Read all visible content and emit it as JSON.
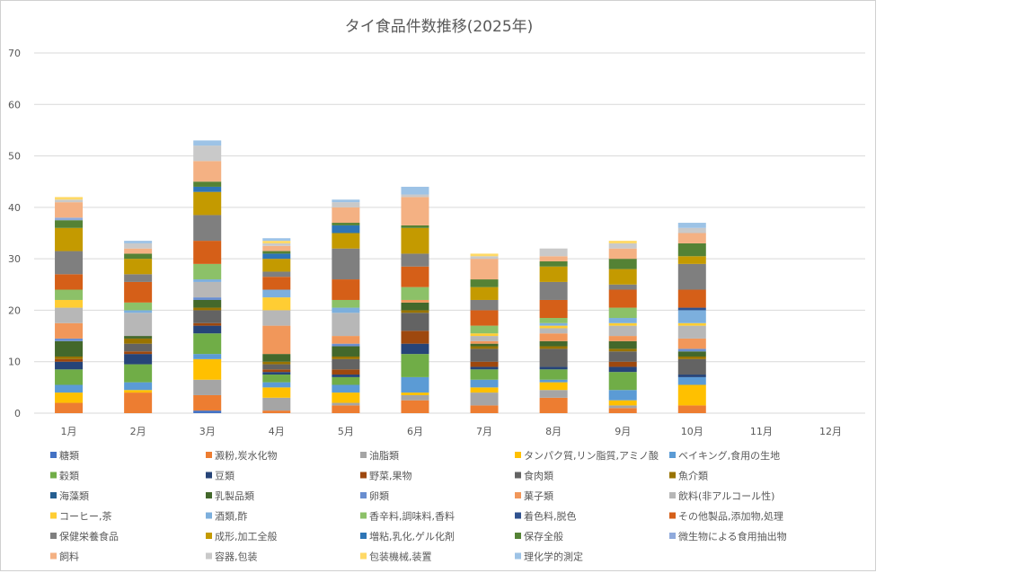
{
  "chart_data": {
    "type": "bar",
    "stacked": true,
    "title": "タイ食品件数推移(2025年)",
    "xlabel": "",
    "ylabel": "",
    "ylim": [
      0,
      70
    ],
    "yticks": [
      0,
      10,
      20,
      30,
      40,
      50,
      60,
      70
    ],
    "grid": true,
    "legend_position": "bottom",
    "categories": [
      "1月",
      "2月",
      "3月",
      "4月",
      "5月",
      "6月",
      "7月",
      "8月",
      "9月",
      "10月",
      "11月",
      "12月"
    ],
    "series": [
      {
        "name": "糖類",
        "color": "#4472C4",
        "values": [
          0,
          0,
          0.5,
          0,
          0,
          0,
          0,
          0,
          0,
          0,
          0,
          0
        ]
      },
      {
        "name": "澱粉,炭水化物",
        "color": "#ED7D31",
        "values": [
          2,
          4,
          3,
          0.5,
          1.5,
          2.5,
          1.5,
          3,
          1,
          1.5,
          0,
          0
        ]
      },
      {
        "name": "油脂類",
        "color": "#A5A5A5",
        "values": [
          0,
          0,
          3,
          2.5,
          0.5,
          1,
          2.5,
          1.5,
          0.5,
          0,
          0,
          0
        ]
      },
      {
        "name": "タンパク質,リン脂質,アミノ酸",
        "color": "#FFC000",
        "values": [
          2,
          0.5,
          4,
          2,
          2,
          0.5,
          1,
          1.5,
          1,
          4,
          0,
          0
        ]
      },
      {
        "name": "ベイキング,食用の生地",
        "color": "#5B9BD5",
        "values": [
          1.5,
          1.5,
          1,
          1,
          1.5,
          3,
          1.5,
          0.5,
          2,
          1.5,
          0,
          0
        ]
      },
      {
        "name": "穀類",
        "color": "#70AD47",
        "values": [
          3,
          3.5,
          4,
          1.5,
          1.5,
          4.5,
          2,
          2,
          3.5,
          0,
          0,
          0
        ]
      },
      {
        "name": "豆類",
        "color": "#264478",
        "values": [
          1.5,
          2,
          1.5,
          0.5,
          0.5,
          2,
          0.5,
          0.5,
          1,
          0.5,
          0,
          0
        ]
      },
      {
        "name": "野菜,果物",
        "color": "#9E480E",
        "values": [
          0.5,
          0.5,
          0.5,
          0.5,
          1,
          2.5,
          1,
          0,
          1,
          0,
          0,
          0
        ]
      },
      {
        "name": "食肉類",
        "color": "#636363",
        "values": [
          0,
          1.5,
          2.5,
          1,
          2,
          3.5,
          2.5,
          3.5,
          2,
          3,
          0,
          0
        ]
      },
      {
        "name": "魚介類",
        "color": "#997300",
        "values": [
          0.5,
          1,
          0.5,
          0.5,
          0.5,
          0.5,
          0.5,
          0.5,
          0.5,
          0.5,
          0,
          0
        ]
      },
      {
        "name": "海藻類",
        "color": "#255E91",
        "values": [
          0,
          0,
          0,
          0,
          0,
          0,
          0,
          0,
          0,
          0,
          0,
          0
        ]
      },
      {
        "name": "乳製品類",
        "color": "#43682B",
        "values": [
          3,
          0.5,
          1.5,
          1.5,
          2,
          1.5,
          0.5,
          1,
          1.5,
          1,
          0,
          0
        ]
      },
      {
        "name": "卵類",
        "color": "#698ED0",
        "values": [
          0.5,
          0,
          0.5,
          0,
          0.5,
          0,
          0,
          0,
          0,
          0.5,
          0,
          0
        ]
      },
      {
        "name": "菓子類",
        "color": "#F1975A",
        "values": [
          3,
          0,
          0,
          5.5,
          1.5,
          0.5,
          0.5,
          1.5,
          1,
          2,
          0,
          0
        ]
      },
      {
        "name": "飲料(非アルコール性)",
        "color": "#B7B7B7",
        "values": [
          3,
          4.5,
          3,
          3,
          4.5,
          0,
          1,
          1,
          2,
          2.5,
          0,
          0
        ]
      },
      {
        "name": "コーヒー,茶",
        "color": "#FFCD33",
        "values": [
          1.5,
          0,
          0,
          2.5,
          0,
          0,
          0.5,
          0.5,
          0.5,
          0.5,
          0,
          0
        ]
      },
      {
        "name": "酒類,酢",
        "color": "#7CAFDD",
        "values": [
          0,
          0.5,
          0.5,
          1.5,
          1,
          0,
          0,
          0.5,
          1,
          2.5,
          0,
          0
        ]
      },
      {
        "name": "香辛料,調味料,香料",
        "color": "#8CC168",
        "values": [
          2,
          1.5,
          3,
          0,
          1.5,
          2.5,
          1.5,
          1,
          2,
          0,
          0,
          0
        ]
      },
      {
        "name": "着色料,脱色",
        "color": "#2F528F",
        "values": [
          0,
          0,
          0,
          0,
          0,
          0,
          0,
          0,
          0,
          0.5,
          0,
          0
        ]
      },
      {
        "name": "その他製品,添加物,処理",
        "color": "#D55F18",
        "values": [
          3,
          4,
          4.5,
          2.5,
          4,
          4,
          3,
          3.5,
          3.5,
          3.5,
          0,
          0
        ]
      },
      {
        "name": "保健栄養食品",
        "color": "#7F7F7F",
        "values": [
          4.5,
          1.5,
          5,
          1,
          6,
          2.5,
          2,
          3.5,
          1,
          5,
          0,
          0
        ]
      },
      {
        "name": "成形,加工全般",
        "color": "#C49A00",
        "values": [
          4.5,
          3,
          4.5,
          2.5,
          3,
          5,
          2.5,
          3,
          3,
          1.5,
          0,
          0
        ]
      },
      {
        "name": "増粘,乳化,ゲル化剤",
        "color": "#2E75B6",
        "values": [
          0,
          0,
          1,
          1,
          1.5,
          0,
          0,
          0,
          0,
          0,
          0,
          0
        ]
      },
      {
        "name": "保存全般",
        "color": "#548235",
        "values": [
          1.5,
          1,
          1,
          0.5,
          0.5,
          0.5,
          1.5,
          1,
          2,
          2.5,
          0,
          0
        ]
      },
      {
        "name": "微生物による食用抽出物",
        "color": "#8FAADC",
        "values": [
          0.5,
          0,
          0,
          0,
          0,
          0,
          0,
          0,
          0,
          0,
          0,
          0
        ]
      },
      {
        "name": "飼料",
        "color": "#F4B183",
        "values": [
          3,
          1,
          4,
          1,
          3,
          5.5,
          4,
          1,
          2,
          2,
          0,
          0
        ]
      },
      {
        "name": "容器,包装",
        "color": "#C9C9C9",
        "values": [
          0.5,
          1,
          3,
          0.5,
          1,
          0.5,
          0.5,
          1.5,
          1,
          1,
          0,
          0
        ]
      },
      {
        "name": "包装機械,装置",
        "color": "#FFD966",
        "values": [
          0.5,
          0,
          0,
          0.5,
          0,
          0,
          0.5,
          0,
          0.5,
          0,
          0,
          0
        ]
      },
      {
        "name": "理化学的測定",
        "color": "#9DC3E6",
        "values": [
          0,
          0.5,
          1,
          0.5,
          0.5,
          1.5,
          0,
          0,
          0,
          1,
          0,
          0
        ]
      }
    ]
  }
}
